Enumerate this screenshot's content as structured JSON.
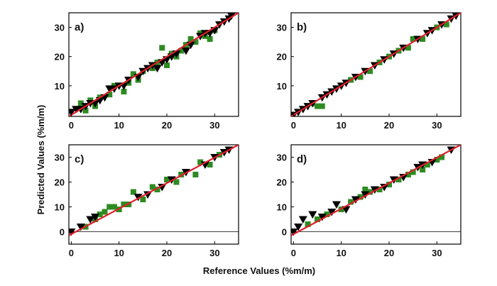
{
  "figure": {
    "xlabel": "Reference Values (%m/m)",
    "ylabel": "Predicted Values (%m/m)"
  },
  "colors": {
    "fit_line": "#e0202a",
    "zero_line": "#000000",
    "square_marker": "#2e8b22",
    "triangle_marker": "#000000"
  },
  "chart_data": [
    {
      "type": "scatter",
      "panel_label": "a)",
      "xlim": [
        -0.5,
        35
      ],
      "ylim": [
        -0.5,
        35
      ],
      "xticks": [
        0,
        10,
        20,
        30
      ],
      "yticks": [
        10,
        20,
        30
      ],
      "zero_line": false,
      "fit_line": [
        [
          -0.5,
          -0.5
        ],
        [
          35,
          35
        ]
      ],
      "series": [
        {
          "marker": "square",
          "color": "#2e8b22",
          "points": [
            [
              2,
              4
            ],
            [
              3,
              1.5
            ],
            [
              4,
              5
            ],
            [
              5,
              3
            ],
            [
              6,
              6
            ],
            [
              8,
              7
            ],
            [
              9,
              10
            ],
            [
              11,
              8
            ],
            [
              12,
              11
            ],
            [
              13,
              14
            ],
            [
              14,
              12
            ],
            [
              15,
              15
            ],
            [
              17,
              16
            ],
            [
              18,
              18
            ],
            [
              19,
              23
            ],
            [
              20,
              17
            ],
            [
              21,
              21
            ],
            [
              22,
              20
            ],
            [
              23,
              22
            ],
            [
              24,
              24
            ],
            [
              25,
              26
            ],
            [
              26,
              25
            ],
            [
              27,
              28
            ],
            [
              28,
              27
            ],
            [
              29,
              26
            ],
            [
              30,
              29
            ]
          ]
        },
        {
          "marker": "triangle-down",
          "color": "#000000",
          "points": [
            [
              0,
              1
            ],
            [
              1,
              2
            ],
            [
              2,
              2
            ],
            [
              3,
              3
            ],
            [
              4,
              4
            ],
            [
              5,
              4
            ],
            [
              6,
              5
            ],
            [
              7,
              6
            ],
            [
              8,
              9
            ],
            [
              9,
              9
            ],
            [
              10,
              10
            ],
            [
              11,
              10
            ],
            [
              12,
              12
            ],
            [
              14,
              13
            ],
            [
              15,
              15
            ],
            [
              16,
              16
            ],
            [
              17,
              17
            ],
            [
              18,
              16
            ],
            [
              19,
              18
            ],
            [
              20,
              19
            ],
            [
              21,
              20
            ],
            [
              22,
              21
            ],
            [
              24,
              22
            ],
            [
              25,
              24
            ],
            [
              27,
              27
            ],
            [
              28,
              28
            ],
            [
              29,
              28
            ],
            [
              30,
              29
            ],
            [
              31,
              31
            ],
            [
              32,
              32
            ],
            [
              33,
              33
            ],
            [
              33.5,
              34
            ]
          ]
        }
      ]
    },
    {
      "type": "scatter",
      "panel_label": "b)",
      "xlim": [
        -0.5,
        35
      ],
      "ylim": [
        -0.5,
        35
      ],
      "xticks": [
        0,
        10,
        20,
        30
      ],
      "yticks": [
        10,
        20,
        30
      ],
      "zero_line": false,
      "fit_line": [
        [
          -0.5,
          -0.5
        ],
        [
          35,
          35
        ]
      ],
      "series": [
        {
          "marker": "square",
          "color": "#2e8b22",
          "points": [
            [
              4,
              4
            ],
            [
              5,
              3
            ],
            [
              6,
              3
            ],
            [
              12,
              12
            ],
            [
              14,
              13
            ],
            [
              16,
              15
            ],
            [
              18,
              18
            ],
            [
              20,
              20
            ],
            [
              22,
              22
            ],
            [
              24,
              23
            ],
            [
              25,
              26
            ],
            [
              27,
              26
            ],
            [
              30,
              30
            ],
            [
              32,
              31
            ]
          ]
        },
        {
          "marker": "triangle-down",
          "color": "#000000",
          "points": [
            [
              0,
              0
            ],
            [
              1,
              1
            ],
            [
              2,
              2
            ],
            [
              3,
              3
            ],
            [
              4,
              4
            ],
            [
              6,
              6
            ],
            [
              7,
              7
            ],
            [
              8,
              8
            ],
            [
              9,
              9
            ],
            [
              10,
              10
            ],
            [
              11,
              11
            ],
            [
              13,
              13
            ],
            [
              15,
              15
            ],
            [
              17,
              17
            ],
            [
              19,
              19
            ],
            [
              21,
              21
            ],
            [
              23,
              23
            ],
            [
              26,
              26
            ],
            [
              28,
              28
            ],
            [
              29,
              29
            ],
            [
              31,
              31
            ],
            [
              33,
              33
            ],
            [
              34,
              34
            ]
          ]
        }
      ]
    },
    {
      "type": "scatter",
      "panel_label": "c)",
      "xlim": [
        -0.5,
        35
      ],
      "ylim": [
        -5,
        35
      ],
      "xticks": [
        0,
        10,
        20,
        30
      ],
      "yticks": [
        0,
        10,
        20,
        30
      ],
      "zero_line": true,
      "fit_line": [
        [
          -0.5,
          -1.5
        ],
        [
          35,
          35
        ]
      ],
      "series": [
        {
          "marker": "square",
          "color": "#2e8b22",
          "points": [
            [
              3,
              2
            ],
            [
              5,
              5
            ],
            [
              6,
              7
            ],
            [
              7,
              8
            ],
            [
              8,
              10
            ],
            [
              9,
              10
            ],
            [
              10,
              9
            ],
            [
              11,
              11
            ],
            [
              12,
              11
            ],
            [
              13,
              16
            ],
            [
              15,
              13
            ],
            [
              17,
              18
            ],
            [
              18,
              17
            ],
            [
              20,
              21
            ],
            [
              22,
              20
            ],
            [
              23,
              23
            ],
            [
              26,
              23
            ],
            [
              27,
              28
            ],
            [
              29,
              27
            ],
            [
              31,
              31
            ]
          ]
        },
        {
          "marker": "triangle-down",
          "color": "#000000",
          "points": [
            [
              0,
              0
            ],
            [
              2,
              2
            ],
            [
              4,
              5
            ],
            [
              5,
              6
            ],
            [
              14,
              14
            ],
            [
              16,
              15
            ],
            [
              19,
              18
            ],
            [
              21,
              21
            ],
            [
              24,
              24
            ],
            [
              28,
              27
            ],
            [
              30,
              30
            ],
            [
              32,
              32
            ],
            [
              33,
              33
            ]
          ]
        }
      ]
    },
    {
      "type": "scatter",
      "panel_label": "d)",
      "xlim": [
        -0.5,
        35
      ],
      "ylim": [
        -5,
        35
      ],
      "xticks": [
        0,
        10,
        20,
        30
      ],
      "yticks": [
        0,
        10,
        20,
        30
      ],
      "zero_line": true,
      "fit_line": [
        [
          -0.5,
          -1.5
        ],
        [
          35,
          35
        ]
      ],
      "series": [
        {
          "marker": "square",
          "color": "#2e8b22",
          "points": [
            [
              3,
              3
            ],
            [
              5,
              5
            ],
            [
              7,
              7
            ],
            [
              10,
              9
            ],
            [
              12,
              12
            ],
            [
              14,
              14
            ],
            [
              15,
              17
            ],
            [
              16,
              16
            ],
            [
              18,
              17
            ],
            [
              20,
              19
            ],
            [
              22,
              21
            ],
            [
              24,
              23
            ],
            [
              25,
              24
            ],
            [
              27,
              25
            ],
            [
              28,
              27
            ],
            [
              30,
              29
            ],
            [
              31,
              30
            ]
          ]
        },
        {
          "marker": "triangle-down",
          "color": "#000000",
          "points": [
            [
              0,
              0
            ],
            [
              1,
              2
            ],
            [
              2,
              5
            ],
            [
              4,
              7
            ],
            [
              6,
              6
            ],
            [
              8,
              8
            ],
            [
              9,
              11
            ],
            [
              11,
              9
            ],
            [
              13,
              13
            ],
            [
              15,
              15
            ],
            [
              17,
              17
            ],
            [
              19,
              18
            ],
            [
              21,
              21
            ],
            [
              23,
              22
            ],
            [
              26,
              26
            ],
            [
              27,
              27
            ],
            [
              29,
              28
            ],
            [
              33,
              33
            ]
          ]
        }
      ]
    }
  ]
}
